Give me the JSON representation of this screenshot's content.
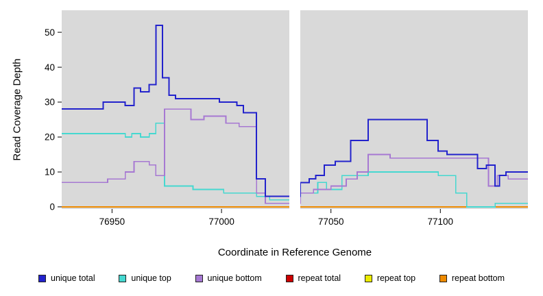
{
  "figure": {
    "background": "#ffffff"
  },
  "chart_data": {
    "type": "line",
    "subtype": "step",
    "title": "",
    "xlabel": "Coordinate in Reference Genome",
    "ylabel": "Read Coverage Depth",
    "xlim": [
      76927,
      77140
    ],
    "ylim": [
      -0.6,
      56.3
    ],
    "x_ticks": [
      76950,
      77000,
      77050,
      77100
    ],
    "y_ticks": [
      0,
      10,
      20,
      30,
      40,
      50
    ],
    "grid": false,
    "plot_bg": "#d9d9d9",
    "gap_region": [
      77031,
      77036
    ],
    "legend_position": "bottom",
    "legend_order": [
      "unique total",
      "unique top",
      "unique bottom",
      "repeat total",
      "repeat top",
      "repeat bottom"
    ],
    "series": [
      {
        "name": "repeat total",
        "color": "#cc0000",
        "steps": [
          [
            76927,
            0
          ]
        ]
      },
      {
        "name": "repeat top",
        "color": "#ebeb00",
        "steps": [
          [
            76927,
            0
          ]
        ]
      },
      {
        "name": "repeat bottom",
        "color": "#ee8a00",
        "steps": [
          [
            76927,
            0
          ]
        ]
      },
      {
        "name": "unique top",
        "color": "#45d8d0",
        "steps": [
          [
            76927,
            21
          ],
          [
            76956,
            20
          ],
          [
            76959,
            21
          ],
          [
            76963,
            20
          ],
          [
            76967,
            21
          ],
          [
            76970,
            24
          ],
          [
            76974,
            6
          ],
          [
            76987,
            5
          ],
          [
            77001,
            4
          ],
          [
            77016,
            3
          ],
          [
            77022,
            2
          ],
          [
            77036,
            4
          ],
          [
            77044,
            7
          ],
          [
            77048,
            5
          ],
          [
            77055,
            9
          ],
          [
            77067,
            10
          ],
          [
            77099,
            9
          ],
          [
            77107,
            4
          ],
          [
            77112,
            0
          ],
          [
            77125,
            1
          ]
        ]
      },
      {
        "name": "unique bottom",
        "color": "#a678d2",
        "steps": [
          [
            76927,
            7
          ],
          [
            76948,
            8
          ],
          [
            76956,
            10
          ],
          [
            76960,
            13
          ],
          [
            76967,
            12
          ],
          [
            76970,
            9
          ],
          [
            76974,
            28
          ],
          [
            76986,
            25
          ],
          [
            76992,
            26
          ],
          [
            77002,
            24
          ],
          [
            77008,
            23
          ],
          [
            77016,
            4
          ],
          [
            77020,
            1
          ],
          [
            77036,
            4
          ],
          [
            77042,
            5
          ],
          [
            77050,
            6
          ],
          [
            77057,
            8
          ],
          [
            77062,
            10
          ],
          [
            77067,
            15
          ],
          [
            77077,
            14
          ],
          [
            77122,
            6
          ],
          [
            77126,
            9
          ],
          [
            77131,
            8
          ]
        ]
      },
      {
        "name": "unique total",
        "color": "#2222cc",
        "steps": [
          [
            76927,
            28
          ],
          [
            76946,
            30
          ],
          [
            76956,
            29
          ],
          [
            76960,
            34
          ],
          [
            76963,
            33
          ],
          [
            76967,
            35
          ],
          [
            76970,
            52
          ],
          [
            76973,
            37
          ],
          [
            76976,
            32
          ],
          [
            76979,
            31
          ],
          [
            76999,
            30
          ],
          [
            77007,
            29
          ],
          [
            77010,
            27
          ],
          [
            77016,
            8
          ],
          [
            77020,
            3
          ],
          [
            77036,
            7
          ],
          [
            77040,
            8
          ],
          [
            77043,
            9
          ],
          [
            77047,
            12
          ],
          [
            77052,
            13
          ],
          [
            77059,
            19
          ],
          [
            77067,
            25
          ],
          [
            77094,
            19
          ],
          [
            77099,
            16
          ],
          [
            77103,
            15
          ],
          [
            77117,
            11
          ],
          [
            77121,
            12
          ],
          [
            77125,
            6
          ],
          [
            77127,
            9
          ],
          [
            77130,
            10
          ]
        ]
      }
    ]
  }
}
